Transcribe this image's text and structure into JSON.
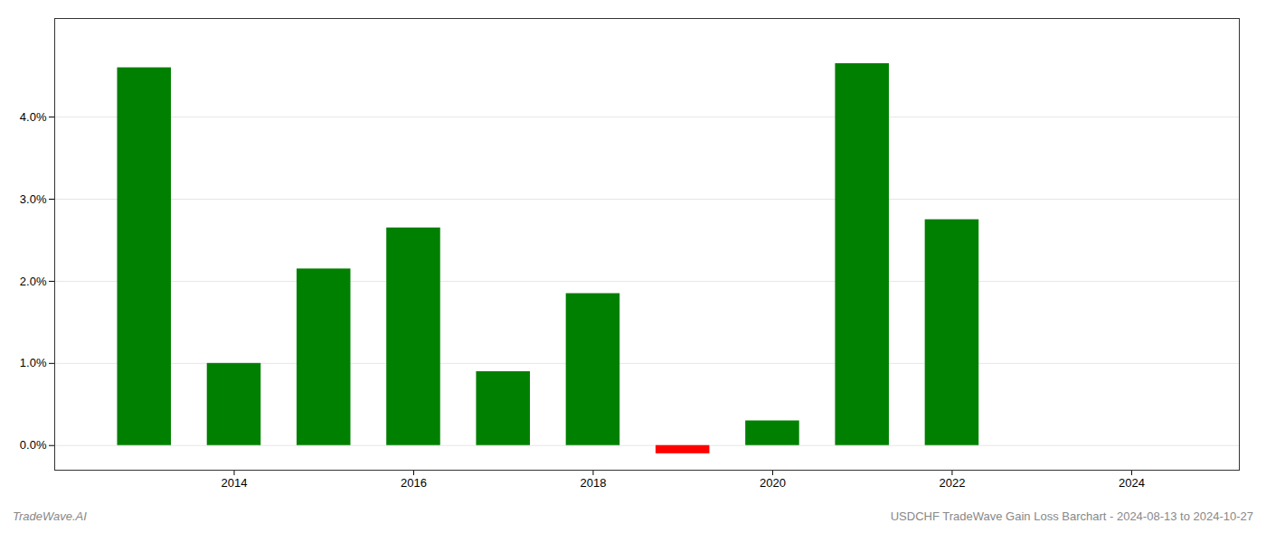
{
  "chart_data": {
    "type": "bar",
    "x": [
      2013,
      2014,
      2015,
      2016,
      2017,
      2018,
      2019,
      2020,
      2021,
      2022,
      2023
    ],
    "values": [
      0.046,
      0.01,
      0.0215,
      0.0265,
      0.009,
      0.0185,
      -0.001,
      0.003,
      0.0465,
      0.0275,
      0.0
    ],
    "colors": [
      "#008000",
      "#008000",
      "#008000",
      "#008000",
      "#008000",
      "#008000",
      "#ff0000",
      "#008000",
      "#008000",
      "#008000",
      "#008000"
    ],
    "xlim": [
      2012.0,
      2025.2
    ],
    "xticks": [
      2014,
      2016,
      2018,
      2020,
      2022,
      2024
    ],
    "ylim": [
      -0.003,
      0.052
    ],
    "yticks": [
      {
        "value": 0.0,
        "label": "0.0%"
      },
      {
        "value": 0.01,
        "label": "1.0%"
      },
      {
        "value": 0.02,
        "label": "2.0%"
      },
      {
        "value": 0.03,
        "label": "3.0%"
      },
      {
        "value": 0.04,
        "label": "4.0%"
      }
    ],
    "grid": true,
    "annotations": [
      "TradeWave.AI",
      "USDCHF TradeWave Gain Loss Barchart - 2024-08-13 to 2024-10-27"
    ]
  }
}
